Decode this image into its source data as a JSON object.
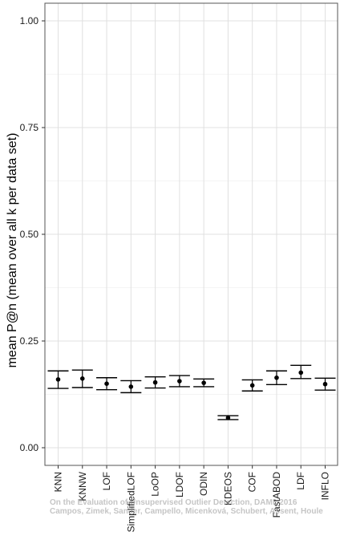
{
  "chart_data": {
    "type": "scatter",
    "ylabel": "mean P@n (mean over all k per data set)",
    "xlabel": "",
    "ylim": [
      0,
      1.0
    ],
    "yticks": [
      "0.00",
      "0.25",
      "0.50",
      "0.75",
      "1.00"
    ],
    "grid": true,
    "legend": "none",
    "categories": [
      "KNN",
      "KNNW",
      "LOF",
      "SimplifiedLOF",
      "LoOP",
      "LDOF",
      "ODIN",
      "KDEOS",
      "COF",
      "FastABOD",
      "LDF",
      "INFLO"
    ],
    "values": [
      0.16,
      0.162,
      0.15,
      0.143,
      0.153,
      0.156,
      0.152,
      0.07,
      0.146,
      0.164,
      0.176,
      0.149
    ],
    "lower": [
      0.139,
      0.141,
      0.136,
      0.129,
      0.14,
      0.143,
      0.143,
      0.066,
      0.133,
      0.148,
      0.162,
      0.135
    ],
    "upper": [
      0.18,
      0.182,
      0.164,
      0.157,
      0.166,
      0.169,
      0.161,
      0.075,
      0.159,
      0.18,
      0.193,
      0.163
    ]
  },
  "watermark": {
    "line1": "On the Evaluation of Unsupervised Outlier Detection, DAMI, 2016",
    "line2": "Campos, Zimek, Sander, Campello, Micenková, Schubert, Assent, Houle"
  },
  "colors": {
    "grid_major": "#e0e0e0",
    "grid_minor": "#f0f0f0",
    "panel_border": "#555555",
    "mark": "#000000"
  }
}
